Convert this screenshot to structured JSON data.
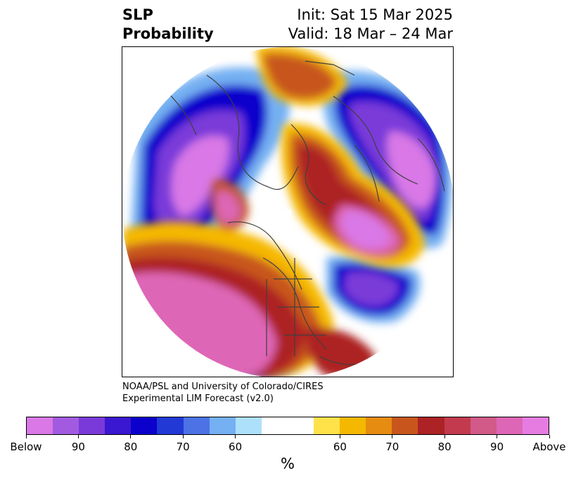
{
  "header": {
    "title_line1": "SLP",
    "title_line2": "Probability",
    "init": "Init: Sat 15 Mar 2025",
    "valid": "Valid: 18 Mar – 24 Mar"
  },
  "credit": {
    "line1": "NOAA/PSL and University of Colorado/CIRES",
    "line2": "Experimental LIM Forecast (v2.0)"
  },
  "colorbar": {
    "colors": [
      "#d978e6",
      "#a25be0",
      "#7a3ad9",
      "#3a17d0",
      "#0b00cc",
      "#2239d6",
      "#4c72e6",
      "#74b0f2",
      "#ade0fa",
      "#ffffff",
      "#ffffff",
      "#ffe24a",
      "#f5b800",
      "#e68c10",
      "#c8561c",
      "#ad2224",
      "#c33a4e",
      "#d15a88",
      "#de66b6",
      "#e67ce2"
    ],
    "tick_labels": [
      "Below",
      "90",
      "80",
      "70",
      "60",
      "60",
      "70",
      "80",
      "90",
      "Above"
    ],
    "unit": "%"
  },
  "map": {
    "projection": "polar-stereographic",
    "field": "SLP probability",
    "colors": {
      "below_strong": "#d978e6",
      "below_mid": "#7a3ad9",
      "below_deep": "#0b00cc",
      "below_weak": "#74b0f2",
      "neutral": "#ffffff",
      "above_weak": "#f5b800",
      "above_mid": "#c8561c",
      "above_deep": "#ad2224",
      "above_strong": "#de66b6"
    }
  }
}
